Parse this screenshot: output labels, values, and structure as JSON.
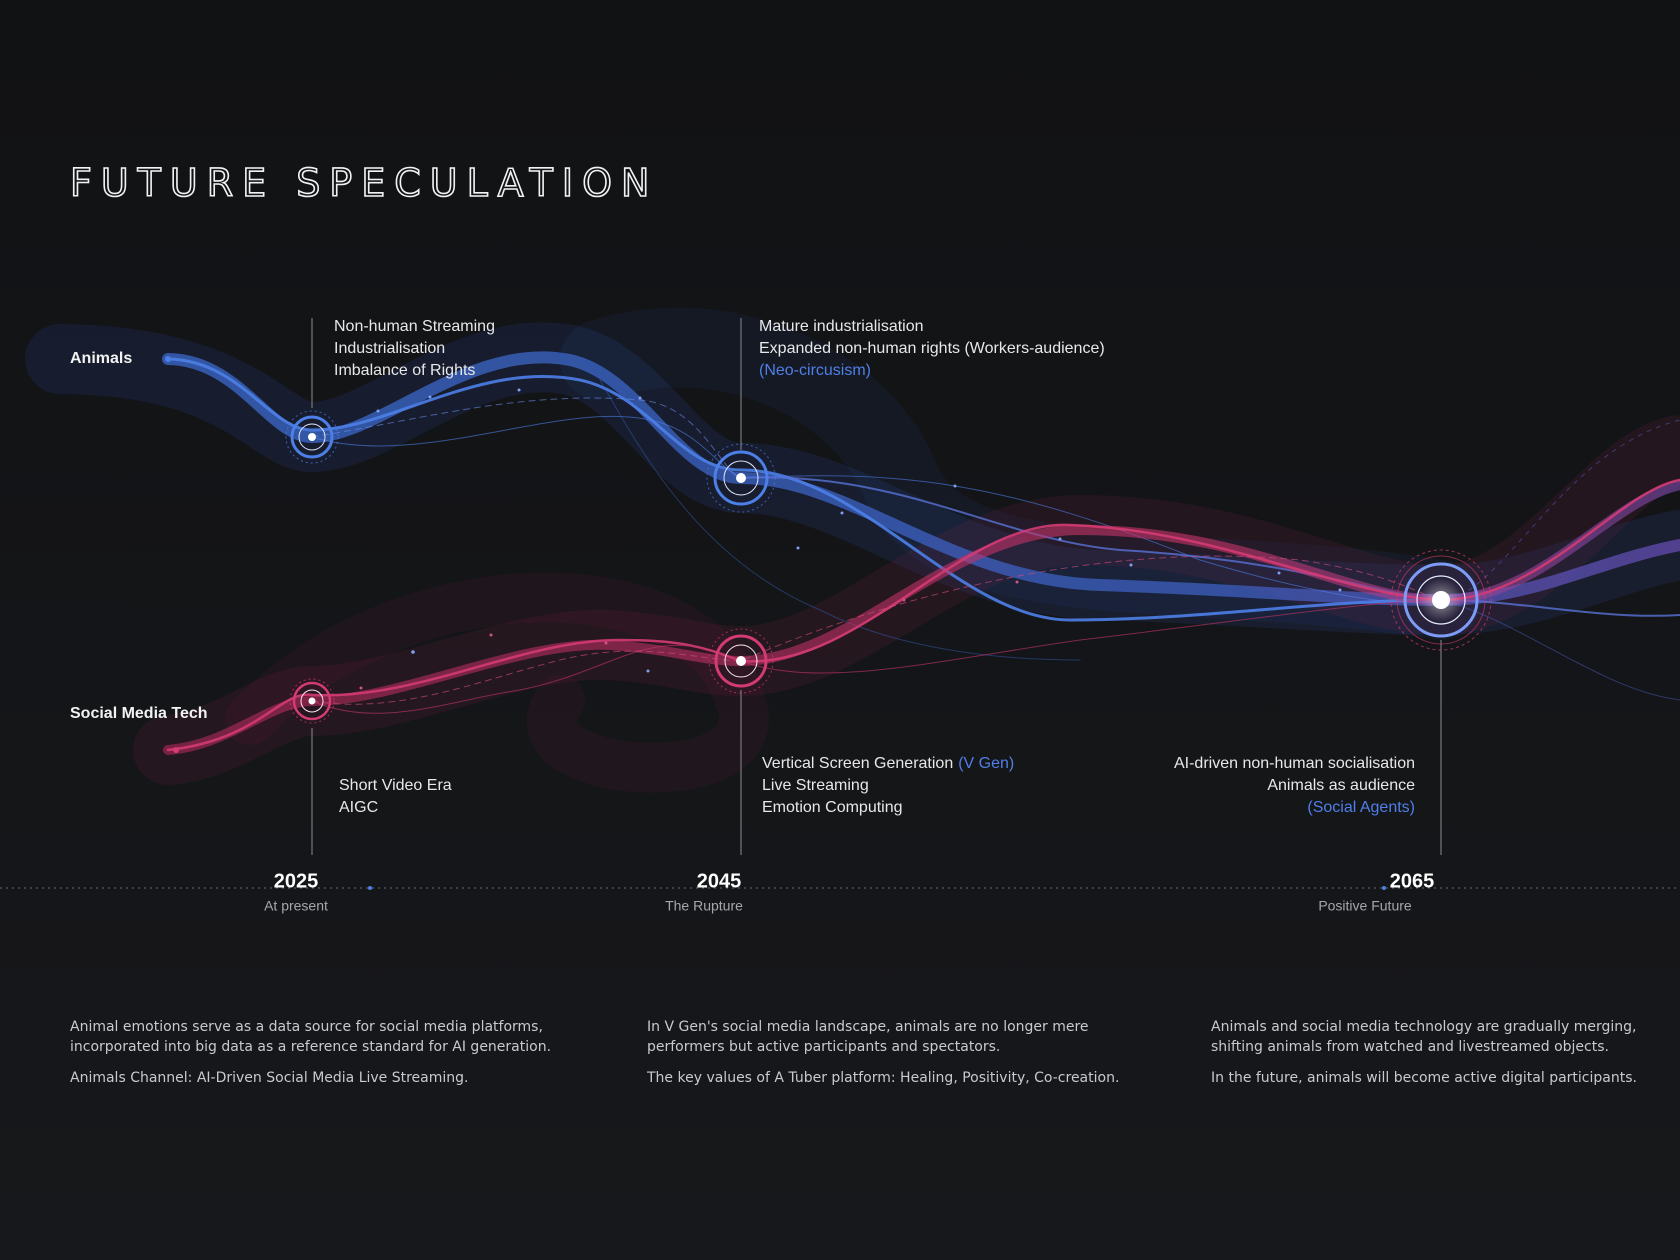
{
  "title": "FUTURE SPECULATION",
  "tracks": [
    "Animals",
    "Social Media Tech"
  ],
  "milestones": [
    {
      "year": "2025",
      "subtitle": "At present",
      "top_notes": [
        [
          {
            "text": "Non-human Streaming"
          }
        ],
        [
          {
            "text": "Industrialisation"
          }
        ],
        [
          {
            "text": "Imbalance of Rights"
          }
        ]
      ],
      "bottom_notes": [
        [
          {
            "text": "Short Video Era"
          }
        ],
        [
          {
            "text": "AIGC"
          }
        ]
      ]
    },
    {
      "year": "2045",
      "subtitle": "The Rupture",
      "top_notes": [
        [
          {
            "text": "Mature industrialisation"
          }
        ],
        [
          {
            "text": "Expanded non-human rights (Workers-audience)"
          }
        ],
        [
          {
            "text": "(Neo-circusism)",
            "accent": true
          }
        ]
      ],
      "bottom_notes": [
        [
          {
            "text": "Vertical Screen Generation"
          },
          {
            "text": "(V Gen)",
            "accent": true
          }
        ],
        [
          {
            "text": "Live Streaming"
          }
        ],
        [
          {
            "text": "Emotion Computing"
          }
        ]
      ]
    },
    {
      "year": "2065",
      "subtitle": "Positive Future",
      "bottom_notes": [
        [
          {
            "text": "AI-driven non-human socialisation"
          }
        ],
        [
          {
            "text": "Animals as audience"
          }
        ],
        [
          {
            "text": "(Social Agents)",
            "accent": true
          }
        ]
      ]
    }
  ],
  "descriptions": [
    [
      [
        "Animal emotions serve as a data source for social media platforms,",
        "incorporated into big data as a reference standard for AI generation."
      ],
      [
        "Animals Channel: AI-Driven Social Media Live Streaming."
      ]
    ],
    [
      [
        "In V Gen's social media landscape, animals are no longer mere",
        "performers but active participants and spectators."
      ],
      [
        "The key values of A Tuber platform: Healing, Positivity, Co-creation."
      ]
    ],
    [
      [
        "Animals and social media technology are gradually merging,",
        "shifting animals from watched and livestreamed objects."
      ],
      [
        "In the future, animals will become active digital participants."
      ]
    ]
  ]
}
